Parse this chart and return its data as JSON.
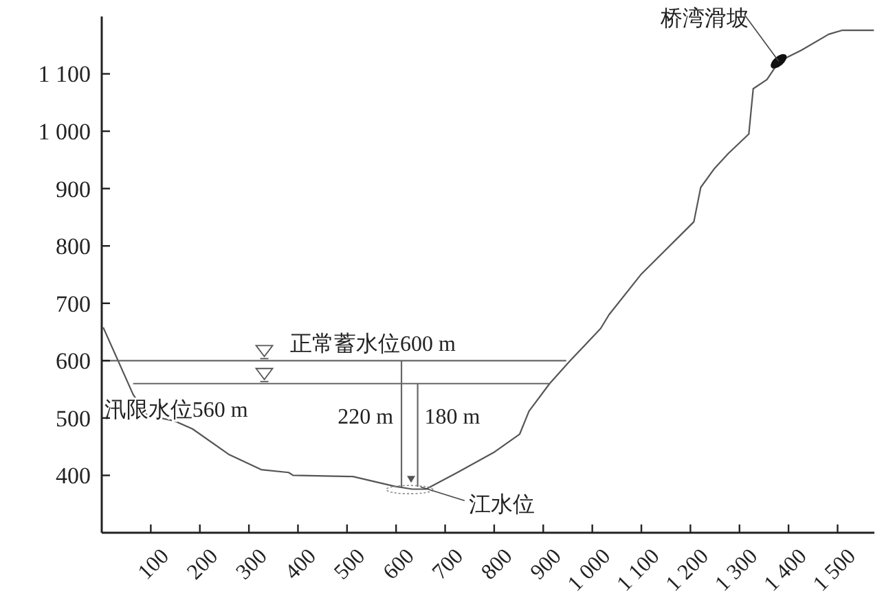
{
  "chart_data": {
    "type": "line",
    "xlim": [
      0,
      1575
    ],
    "ylim": [
      300,
      1200
    ],
    "xticks": [
      100,
      200,
      300,
      400,
      500,
      600,
      700,
      800,
      900,
      {
        "value": 1000,
        "label": "1 000"
      },
      {
        "value": 1100,
        "label": "1 100"
      },
      {
        "value": 1200,
        "label": "1 200"
      },
      {
        "value": 1300,
        "label": "1 300"
      },
      {
        "value": 1400,
        "label": "1 400"
      },
      {
        "value": 1500,
        "label": "1 500"
      }
    ],
    "yticks": [
      400,
      500,
      600,
      700,
      800,
      900,
      {
        "value": 1000,
        "label": "1 000"
      },
      {
        "value": 1100,
        "label": "1 100"
      }
    ],
    "grid": false,
    "marker": "none",
    "line_style": "solid",
    "series": [
      {
        "color": "#555555",
        "x": [
          3,
          64,
          92,
          148,
          185,
          260,
          325,
          381,
          390,
          512,
          597,
          633,
          661,
          725,
          801,
          852,
          871,
          913,
          955,
          1017,
          1034,
          1100,
          1207,
          1221,
          1249,
          1277,
          1319,
          1328,
          1356,
          1381,
          1426,
          1482,
          1510,
          1574
        ],
        "values": [
          658,
          541,
          505,
          495,
          481,
          436,
          410,
          405,
          400,
          398,
          381,
          376,
          376,
          405,
          441,
          472,
          512,
          560,
          600,
          656,
          680,
          751,
          842,
          902,
          935,
          961,
          995,
          1074,
          1090,
          1122,
          1141,
          1169,
          1176,
          1176
        ]
      },
      {
        "color": "#666666",
        "x": [
          0,
          947
        ],
        "values": [
          600,
          600
        ]
      },
      {
        "color": "#666666",
        "x": [
          64,
          913
        ],
        "values": [
          560,
          560
        ]
      },
      {
        "color": "#666666",
        "x": [
          611,
          611
        ],
        "values": [
          600,
          380
        ]
      },
      {
        "color": "#666666",
        "x": [
          644,
          644
        ],
        "values": [
          560,
          380
        ]
      }
    ],
    "annotations": [
      {
        "text": "正常蓄水位600 m",
        "x": 384,
        "y": 600
      },
      {
        "text": "汛限水位560 m",
        "x": 64,
        "y": 560
      },
      {
        "text": "220 m",
        "x": 611,
        "y": 490
      },
      {
        "text": "180 m",
        "x": 644,
        "y": 490
      },
      {
        "text": "江水位",
        "x": 650,
        "y": 380
      },
      {
        "text": "桥湾滑坡",
        "x": 1380,
        "y": 1122
      }
    ]
  }
}
